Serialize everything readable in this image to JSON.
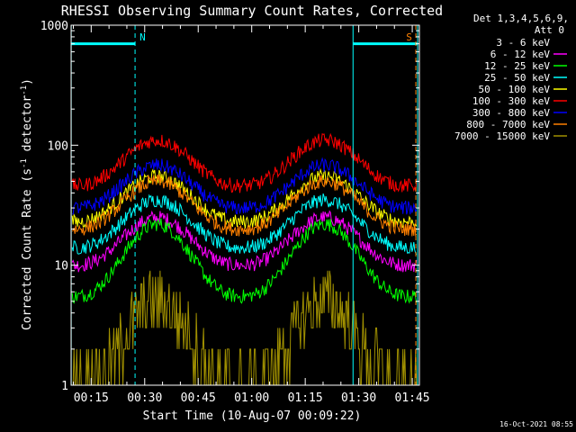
{
  "chart_data": {
    "type": "line",
    "title": "RHESSI Observing Summary Count Rates, Corrected",
    "xlabel": "Start Time (10-Aug-07 00:09:22)",
    "ylabel_main": "Corrected Count Rate (s",
    "ylabel_sup1": "-1",
    "ylabel_mid": " detector",
    "ylabel_sup2": "-1",
    "ylabel_end": ")",
    "yscale": "log",
    "ylim": [
      1,
      1000
    ],
    "x_range_min": [
      9.37,
      107.0
    ],
    "xticks": [
      {
        "min": 15,
        "label": "00:15"
      },
      {
        "min": 30,
        "label": "00:30"
      },
      {
        "min": 45,
        "label": "00:45"
      },
      {
        "min": 60,
        "label": "01:00"
      },
      {
        "min": 75,
        "label": "01:15"
      },
      {
        "min": 90,
        "label": "01:30"
      },
      {
        "min": 105,
        "label": "01:45"
      }
    ],
    "yticks": [
      {
        "v": 1,
        "label": "1"
      },
      {
        "v": 10,
        "label": "10"
      },
      {
        "v": 100,
        "label": "100"
      },
      {
        "v": 1000,
        "label": "1000"
      }
    ],
    "legend_header1": "Det 1,3,4,5,6,9,",
    "legend_header2": "Att 0",
    "legend_position": "top-right, outside plot",
    "series": [
      {
        "name": "3 - 6 keV",
        "color": "#000000",
        "min": 3.5,
        "max": 17,
        "trough": 3.5
      },
      {
        "name": "6 - 12 keV",
        "color": "#ff00ff",
        "min": 10,
        "max": 25,
        "trough": 10
      },
      {
        "name": "12 - 25 keV",
        "color": "#00ff00",
        "min": 5.5,
        "max": 22,
        "trough": 5.5
      },
      {
        "name": "25 - 50 keV",
        "color": "#00ffff",
        "min": 14,
        "max": 35,
        "trough": 14
      },
      {
        "name": "50 - 100 keV",
        "color": "#ffff00",
        "min": 23,
        "max": 55,
        "trough": 23
      },
      {
        "name": "100 - 300 keV",
        "color": "#ff0000",
        "min": 46,
        "max": 110,
        "trough": 46
      },
      {
        "name": "300 - 800 keV",
        "color": "#0000ff",
        "min": 30,
        "max": 68,
        "trough": 30
      },
      {
        "name": "800 - 7000 keV",
        "color": "#ff8000",
        "min": 20,
        "max": 50,
        "trough": 20
      },
      {
        "name": "7000 - 15000 keV",
        "color": "#a09000",
        "min": 1,
        "max": 5,
        "trough": 1
      }
    ],
    "peaks_min": [
      33.5,
      80.5
    ],
    "troughs_min": [
      57,
      99
    ],
    "annotations": [
      {
        "label": "N",
        "min": 27.3,
        "color": "#00ffff"
      },
      {
        "label": "S",
        "min": 106.3,
        "color": "#ff8000"
      }
    ],
    "night_line_value": 700,
    "night_spans_min": [
      [
        9.37,
        27.3
      ],
      [
        88.4,
        106.5
      ]
    ],
    "vertical_lines": [
      {
        "min": 9.4,
        "color": "#00ffff",
        "style": "solid"
      },
      {
        "min": 27.3,
        "color": "#00ffff",
        "style": "dashed"
      },
      {
        "min": 88.4,
        "color": "#00ffff",
        "style": "solid"
      },
      {
        "min": 106.0,
        "color": "#ff8000",
        "style": "dashed"
      },
      {
        "min": 106.5,
        "color": "#00ffff",
        "style": "solid"
      }
    ],
    "footer_timestamp": "16-Oct-2021 08:55"
  }
}
